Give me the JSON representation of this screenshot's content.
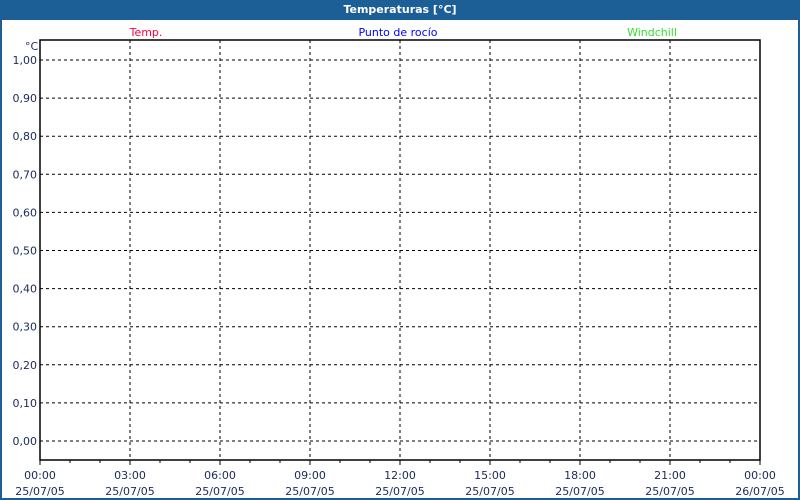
{
  "chart_data": {
    "type": "line",
    "title": "Temperaturas [°C]",
    "ylabel": "°C",
    "ylim": [
      0,
      1
    ],
    "yticks": [
      "0,00",
      "0,10",
      "0,20",
      "0,30",
      "0,40",
      "0,50",
      "0,60",
      "0,70",
      "0,80",
      "0,90",
      "1,00"
    ],
    "xticks": [
      {
        "time": "00:00",
        "date": "25/07/05"
      },
      {
        "time": "03:00",
        "date": "25/07/05"
      },
      {
        "time": "06:00",
        "date": "25/07/05"
      },
      {
        "time": "09:00",
        "date": "25/07/05"
      },
      {
        "time": "12:00",
        "date": "25/07/05"
      },
      {
        "time": "15:00",
        "date": "25/07/05"
      },
      {
        "time": "18:00",
        "date": "25/07/05"
      },
      {
        "time": "21:00",
        "date": "25/07/05"
      },
      {
        "time": "00:00",
        "date": "26/07/05"
      }
    ],
    "xlim": [
      "25/07/05 00:00",
      "26/07/05 00:00"
    ],
    "grid": true,
    "legend_placement": "top",
    "series": [
      {
        "name": "Temp.",
        "color": "#ff0040",
        "values": []
      },
      {
        "name": "Punto de rocío",
        "color": "#0000ff",
        "values": []
      },
      {
        "name": "Windchill",
        "color": "#33dd33",
        "values": []
      }
    ]
  },
  "colors": {
    "titlebar": "#1c5f96",
    "text": "#1a2a5a"
  }
}
